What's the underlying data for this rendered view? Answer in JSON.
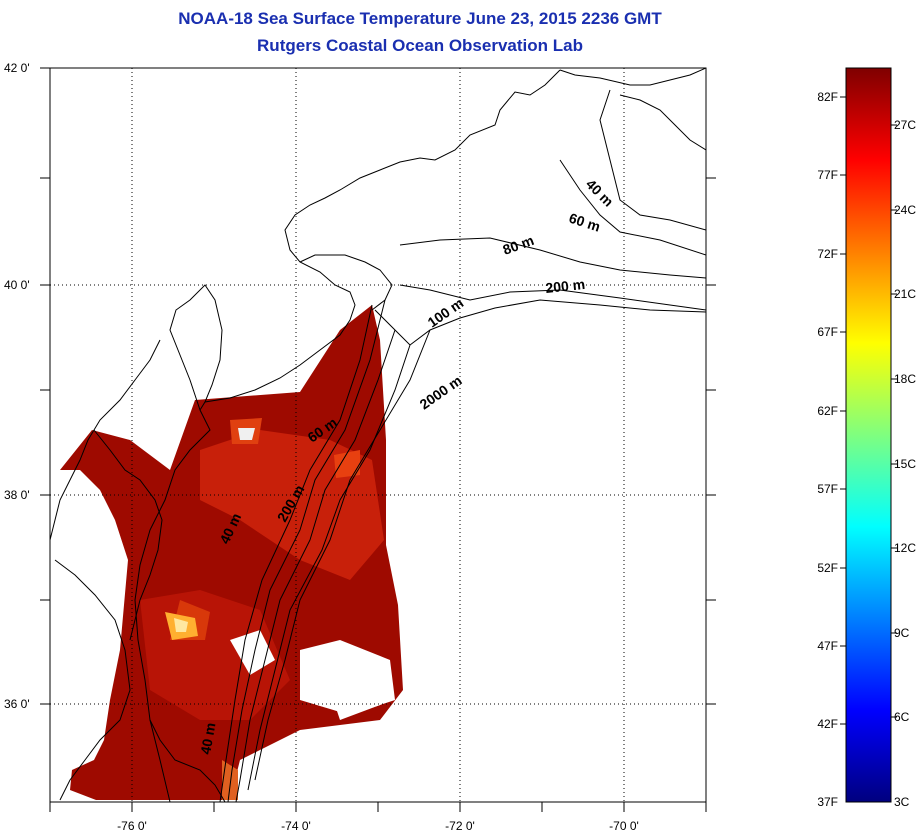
{
  "title": {
    "line1": "NOAA-18 Sea Surface Temperature June 23, 2015 2236 GMT",
    "line2": "Rutgers Coastal Ocean Observation Lab"
  },
  "map": {
    "lat_labels": [
      "42 0'",
      "40 0'",
      "38 0'",
      "36 0'"
    ],
    "lon_labels": [
      "-76 0'",
      "-74 0'",
      "-72 0'",
      "-70 0'"
    ],
    "contour_labels": [
      "40 m",
      "60 m",
      "80 m",
      "200 m",
      "100 m",
      "2000 m",
      "60 m",
      "200 m",
      "40 m",
      "40 m"
    ],
    "land_color": "#ffffff",
    "coast_color": "#000000"
  },
  "colorbar": {
    "f_labels": [
      "82F",
      "77F",
      "72F",
      "67F",
      "62F",
      "57F",
      "52F",
      "47F",
      "42F",
      "37F"
    ],
    "c_labels": [
      "27C",
      "24C",
      "21C",
      "18C",
      "15C",
      "12C",
      "9C",
      "6C",
      "3C"
    ],
    "colors": [
      "#00007f",
      "#0000ff",
      "#007fff",
      "#00ffff",
      "#7fff7f",
      "#ffff00",
      "#ff7f00",
      "#ff0000",
      "#7f0000"
    ]
  }
}
